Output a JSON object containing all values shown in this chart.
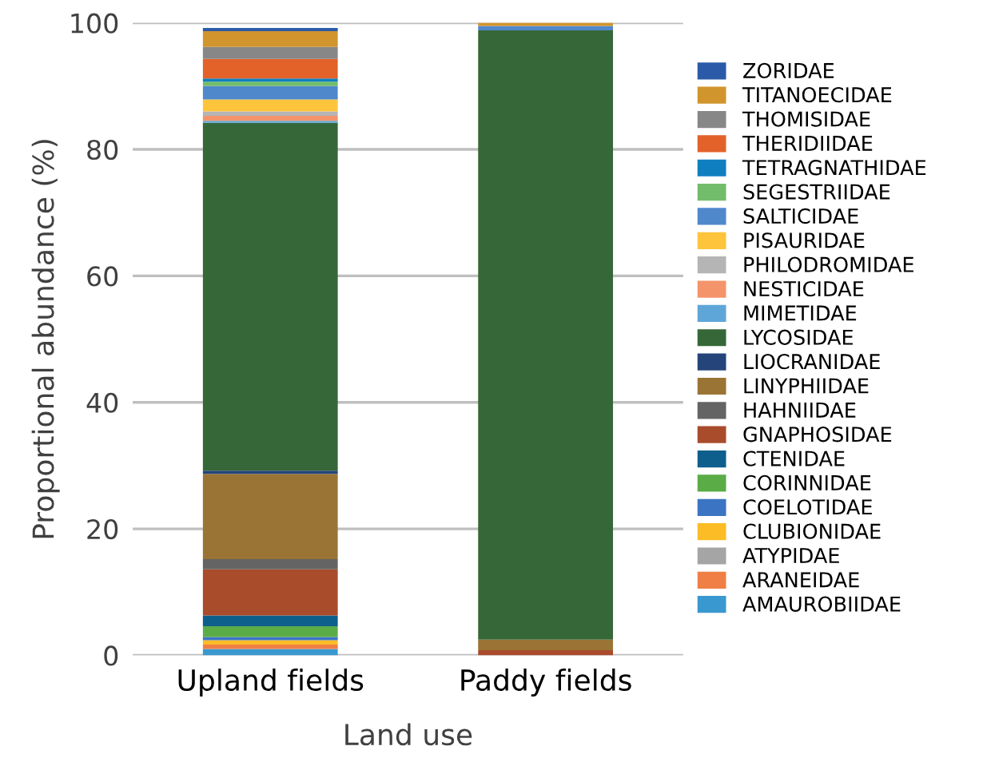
{
  "chart_data": {
    "type": "bar",
    "stacked": true,
    "xlabel": "Land use",
    "ylabel": "Proportional abundance (%)",
    "categories": [
      "Upland fields",
      "Paddy fields"
    ],
    "ylim": [
      0,
      100
    ],
    "yticks": [
      0,
      20,
      40,
      60,
      80,
      100
    ],
    "grid": "y",
    "legend": "right",
    "series": [
      {
        "name": "AMAUROBIIDAE",
        "color": "#3a98d0",
        "values": [
          1.0,
          0
        ]
      },
      {
        "name": "ARANEIDAE",
        "color": "#f07f45",
        "values": [
          0.7,
          0
        ]
      },
      {
        "name": "ATYPIDAE",
        "color": "#a5a5a5",
        "values": [
          null,
          0
        ]
      },
      {
        "name": "CLUBIONIDAE",
        "color": "#fbbc25",
        "values": [
          0.7,
          0
        ]
      },
      {
        "name": "COELOTIDAE",
        "color": "#3b74c2",
        "values": [
          0.5,
          0
        ]
      },
      {
        "name": "CORINNIDAE",
        "color": "#5aac47",
        "values": [
          1.7,
          0
        ]
      },
      {
        "name": "CTENIDAE",
        "color": "#0e5f8c",
        "values": [
          1.7,
          0
        ]
      },
      {
        "name": "GNAPHOSIDAE",
        "color": "#a84c2c",
        "values": [
          7.3,
          0.8
        ]
      },
      {
        "name": "HAHNIIDAE",
        "color": "#646464",
        "values": [
          1.6,
          0
        ]
      },
      {
        "name": "LINYPHIIDAE",
        "color": "#9a7435",
        "values": [
          13.5,
          1.7
        ]
      },
      {
        "name": "LIOCRANIDAE",
        "color": "#25457a",
        "values": [
          0.5,
          0
        ]
      },
      {
        "name": "LYCOSIDAE",
        "color": "#366738",
        "values": [
          55.0,
          96.3
        ]
      },
      {
        "name": "MIMETIDAE",
        "color": "#5fa6d8",
        "values": [
          0.3,
          0
        ]
      },
      {
        "name": "NESTICIDAE",
        "color": "#f4946a",
        "values": [
          0.8,
          0
        ]
      },
      {
        "name": "PHILODROMIDAE",
        "color": "#b5b5b5",
        "values": [
          0.7,
          0
        ]
      },
      {
        "name": "PISAURIDAE",
        "color": "#fdc43c",
        "values": [
          1.9,
          0
        ]
      },
      {
        "name": "SALTICIDAE",
        "color": "#5088cc",
        "values": [
          2.1,
          0.7
        ]
      },
      {
        "name": "SEGESTRIIDAE",
        "color": "#72bc6c",
        "values": [
          0.7,
          0
        ]
      },
      {
        "name": "TETRAGNATHIDAE",
        "color": "#0f7fbf",
        "values": [
          0.5,
          0
        ]
      },
      {
        "name": "THERIDIIDAE",
        "color": "#e2622a",
        "values": [
          3.1,
          0
        ]
      },
      {
        "name": "THOMISIDAE",
        "color": "#878787",
        "values": [
          1.9,
          0
        ]
      },
      {
        "name": "TITANOECIDAE",
        "color": "#d0952c",
        "values": [
          2.5,
          0.5
        ]
      },
      {
        "name": "ZORIDAE",
        "color": "#2b5ba8",
        "values": [
          0.5,
          0
        ]
      }
    ]
  }
}
